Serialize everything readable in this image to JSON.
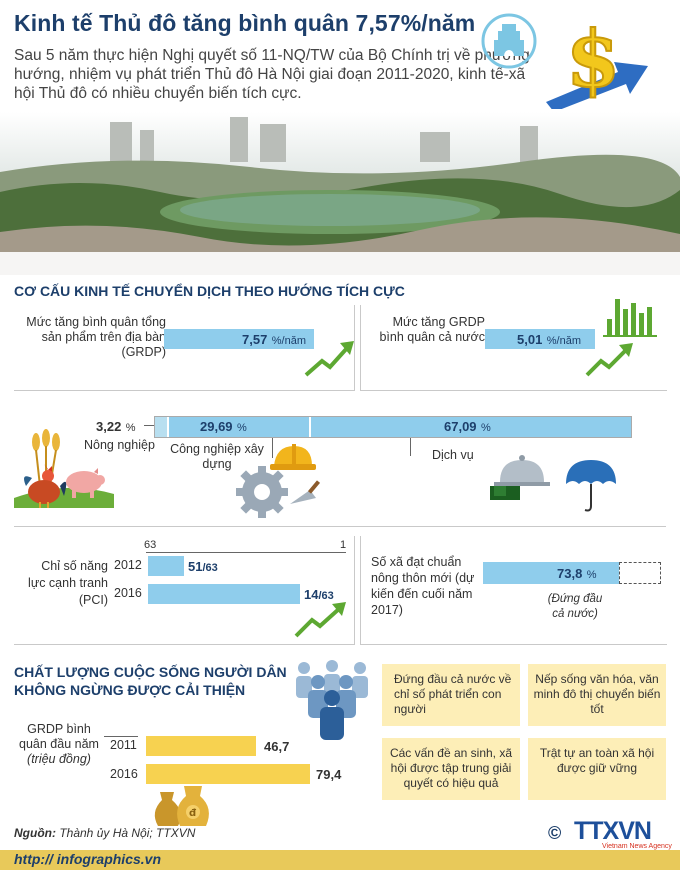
{
  "header": {
    "title": "Kinh tế Thủ đô tăng bình quân 7,57%/năm",
    "intro": "Sau 5 năm thực hiện Nghị quyết số 11-NQ/TW của Bộ Chính trị về phương hướng, nhiệm vụ phát triển Thủ đô Hà Nội  giai đoạn 2011-2020, kinh tế-xã hội Thủ đô có nhiều chuyển biến tích cực."
  },
  "section1": {
    "title": "CƠ CẤU KINH TẾ CHUYỂN DỊCH THEO HƯỚNG TÍCH CỰC",
    "grdp_growth": {
      "label": "Mức tăng bình quân tổng sản phẩm trên địa bàn (GRDP)",
      "value": "7,57",
      "unit": "%/năm",
      "fraction": 0.7
    },
    "national_growth": {
      "label": "Mức tăng GRDP bình quân cả nước",
      "value": "5,01",
      "unit": "%/năm",
      "fraction": 0.55
    },
    "structure": {
      "agriculture": {
        "value": "3,22",
        "unit": "%",
        "label": "Nông nghiệp"
      },
      "industry": {
        "value": "29,69",
        "unit": "%",
        "label": "Công nghiệp xây dựng"
      },
      "services": {
        "value": "67,09",
        "unit": "%",
        "label": "Dịch vụ"
      }
    },
    "pci": {
      "label": "Chỉ số năng lực cạnh tranh (PCI)",
      "scale_left": "63",
      "scale_right": "1",
      "rows": [
        {
          "year": "2012",
          "rank": "51",
          "total": "/63"
        },
        {
          "year": "2016",
          "rank": "14",
          "total": "/63"
        }
      ]
    },
    "rural": {
      "label": "Số xã đạt chuẩn nông thôn mới (dự kiến đến cuối năm 2017)",
      "value": "73,8",
      "unit": "%",
      "note": "(Đứng đầu cả nước)"
    }
  },
  "section2": {
    "title_line1": "CHẤT LƯỢNG CUỘC SỐNG NGƯỜI DÂN",
    "title_line2": "KHÔNG NGỪNG ĐƯỢC CẢI THIỆN",
    "gdp_label_line1": "GRDP bình",
    "gdp_label_line2": "quân đầu năm",
    "gdp_label_unit": "(triệu đồng)",
    "rows": [
      {
        "year": "2011",
        "value": "46,7"
      },
      {
        "year": "2016",
        "value": "79,4"
      }
    ],
    "boxes": [
      "Đứng đầu cả nước về chỉ số phát triển con người",
      "Nếp sống văn hóa, văn minh đô thị chuyển biến tốt",
      "Các vấn đề an sinh, xã hội được tập trung giải quyết có hiệu quả",
      "Trật tự an toàn xã hội được giữ vững"
    ]
  },
  "footer": {
    "source_label": "Nguồn:",
    "source_text": "Thành ủy Hà Nội; TTXVN",
    "url": "http:// infographics.vn",
    "agency": "TTXVN",
    "agency_sub": "Vietnam News Agency",
    "copyright": "©"
  },
  "icons": [
    "hanoi-emblem-icon",
    "dollar-arrow-icon",
    "growth-arrow-icon",
    "bar-chart-icon",
    "wheat-icon",
    "rooster-icon",
    "pig-icon",
    "hard-hat-icon",
    "gear-icon",
    "trowel-icon",
    "food-cloche-icon",
    "umbrella-icon",
    "people-icon",
    "money-bag-icon"
  ],
  "colors": {
    "title": "#1d3f6b",
    "bar_blue": "#8fcdec",
    "bar_yellow": "#f7d250",
    "box_yellow": "#fdeeb7",
    "arrow_green": "#5da832"
  }
}
